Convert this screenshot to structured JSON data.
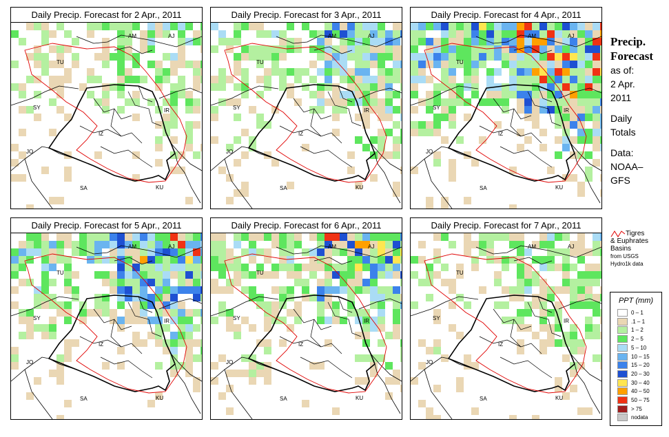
{
  "panels": [
    {
      "title": "Daily Precip. Forecast for  2 Apr., 2011",
      "intensity": 0.55,
      "seed": 11
    },
    {
      "title": "Daily Precip. Forecast for  3 Apr., 2011",
      "intensity": 0.75,
      "seed": 23
    },
    {
      "title": "Daily Precip. Forecast for  4 Apr., 2011",
      "intensity": 1.15,
      "seed": 37
    },
    {
      "title": "Daily Precip. Forecast for  5 Apr., 2011",
      "intensity": 0.95,
      "seed": 41
    },
    {
      "title": "Daily Precip. Forecast for  6 Apr., 2011",
      "intensity": 0.85,
      "seed": 53
    },
    {
      "title": "Daily Precip. Forecast for  7 Apr., 2011",
      "intensity": 0.6,
      "seed": 67
    }
  ],
  "country_labels": [
    "AM",
    "AJ",
    "TU",
    "SY",
    "IR",
    "IZ",
    "JO",
    "SA",
    "KU"
  ],
  "sidebar": {
    "title_line1": "Precip.",
    "title_line2": "Forecast",
    "asof_label": "as of:",
    "date_line1": "2 Apr.",
    "date_line2": "2011",
    "daily_line1": "Daily",
    "daily_line2": "Totals",
    "data_line1": "Data:",
    "data_line2": "NOAA–",
    "data_line3": "GFS"
  },
  "basin_legend": {
    "line1": "Tigres",
    "line2": "& Euphrates",
    "line3": "Basins",
    "line4": "from USGS",
    "line5": "Hydro1k data"
  },
  "legend": {
    "title": "PPT (mm)",
    "items": [
      {
        "label": "0 – 1",
        "color": "#ffffff"
      },
      {
        "label": ".1 – 1",
        "color": "#ead7b4"
      },
      {
        "label": "1 – 2",
        "color": "#b4f0a0"
      },
      {
        "label": "2 – 5",
        "color": "#5ee65e"
      },
      {
        "label": "5 – 10",
        "color": "#aadcf5"
      },
      {
        "label": "10 – 15",
        "color": "#6ab4f0"
      },
      {
        "label": "15 – 20",
        "color": "#3c82eb"
      },
      {
        "label": "20 – 30",
        "color": "#1e50d2"
      },
      {
        "label": "30 – 40",
        "color": "#ffe650"
      },
      {
        "label": "40 – 50",
        "color": "#ffa000"
      },
      {
        "label": "50 – 75",
        "color": "#f03214"
      },
      {
        "label": "> 75",
        "color": "#a01e1e"
      },
      {
        "label": "nodata",
        "color": "#c8c8c8"
      }
    ]
  }
}
